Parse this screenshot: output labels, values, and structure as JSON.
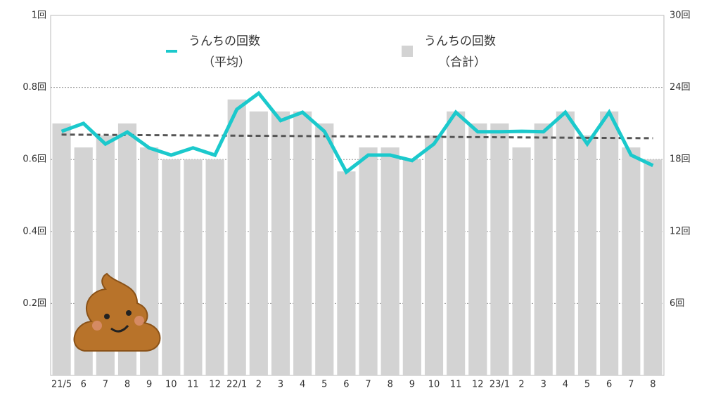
{
  "chart_data": {
    "type": "bar_line",
    "categories": [
      "21/5",
      "6",
      "7",
      "8",
      "9",
      "10",
      "11",
      "12",
      "22/1",
      "2",
      "3",
      "4",
      "5",
      "6",
      "7",
      "8",
      "9",
      "10",
      "11",
      "12",
      "23/1",
      "2",
      "3",
      "4",
      "5",
      "6",
      "7",
      "8"
    ],
    "series": [
      {
        "name": "うんちの回数",
        "note": "（平均）",
        "type": "line",
        "color": "#1bc9cc",
        "values": [
          0.678,
          0.7,
          0.643,
          0.676,
          0.632,
          0.612,
          0.632,
          0.612,
          0.739,
          0.784,
          0.708,
          0.731,
          0.678,
          0.565,
          0.612,
          0.612,
          0.597,
          0.643,
          0.731,
          0.677,
          0.677,
          0.678,
          0.677,
          0.731,
          0.643,
          0.731,
          0.612,
          0.583
        ]
      },
      {
        "name": "うんちの回数",
        "note": "（合計）",
        "type": "bar",
        "color": "#d3d3d3",
        "axis": "y2",
        "values": [
          21,
          19,
          20,
          21,
          19,
          18,
          18,
          18,
          23,
          22,
          22,
          22,
          21,
          17,
          19,
          19,
          18,
          20,
          22,
          21,
          21,
          19,
          21,
          22,
          20,
          22,
          19,
          18
        ]
      }
    ],
    "trend_line": {
      "values": [
        0.669,
        0.659
      ],
      "color": "#555555"
    },
    "ylim": [
      0,
      1
    ],
    "yticks": [
      {
        "value": 0.2,
        "label": "0.2回"
      },
      {
        "value": 0.4,
        "label": "0.4回"
      },
      {
        "value": 0.6,
        "label": "0.6回"
      },
      {
        "value": 0.8,
        "label": "0.8回"
      },
      {
        "value": 1,
        "label": "1回"
      }
    ],
    "y2lim": [
      0,
      30
    ],
    "y2ticks": [
      {
        "value": 6,
        "label": "6回"
      },
      {
        "value": 12,
        "label": "12回"
      },
      {
        "value": 18,
        "label": "18回"
      },
      {
        "value": 24,
        "label": "24回"
      },
      {
        "value": 30,
        "label": "30回"
      }
    ],
    "grid": true
  }
}
